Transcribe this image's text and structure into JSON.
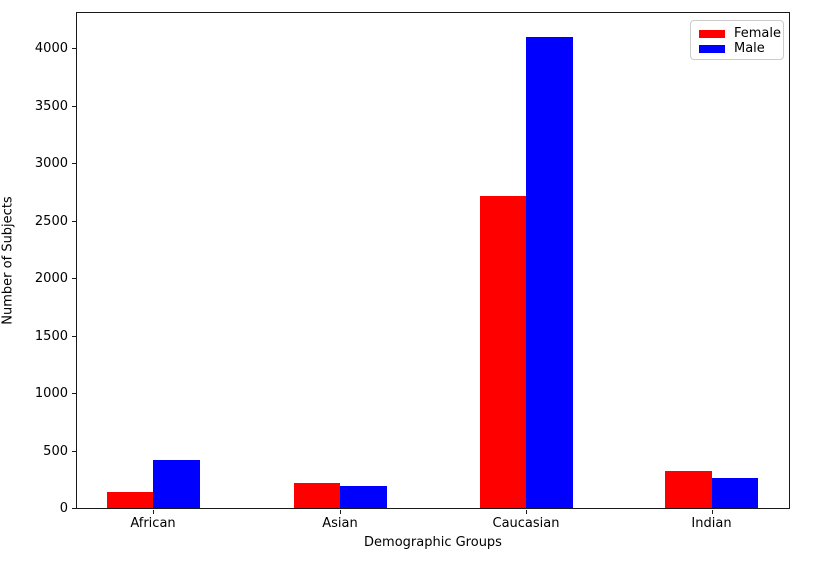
{
  "figure": {
    "background": "#ffffff",
    "spine_color": "#1a1a1a"
  },
  "chart_data": {
    "type": "bar",
    "title": "",
    "xlabel": "Demographic Groups",
    "ylabel": "Number of Subjects",
    "categories": [
      "African",
      "Asian",
      "Caucasian",
      "Indian"
    ],
    "series": [
      {
        "name": "Female",
        "color": "#ff0000",
        "values": [
          140,
          220,
          2710,
          320
        ]
      },
      {
        "name": "Male",
        "color": "#0000ff",
        "values": [
          420,
          195,
          4100,
          265
        ]
      }
    ],
    "yticks": [
      0,
      500,
      1000,
      1500,
      2000,
      2500,
      3000,
      3500,
      4000
    ],
    "ylim": [
      0,
      4322
    ],
    "grid": false,
    "legend_position": "upper right"
  }
}
